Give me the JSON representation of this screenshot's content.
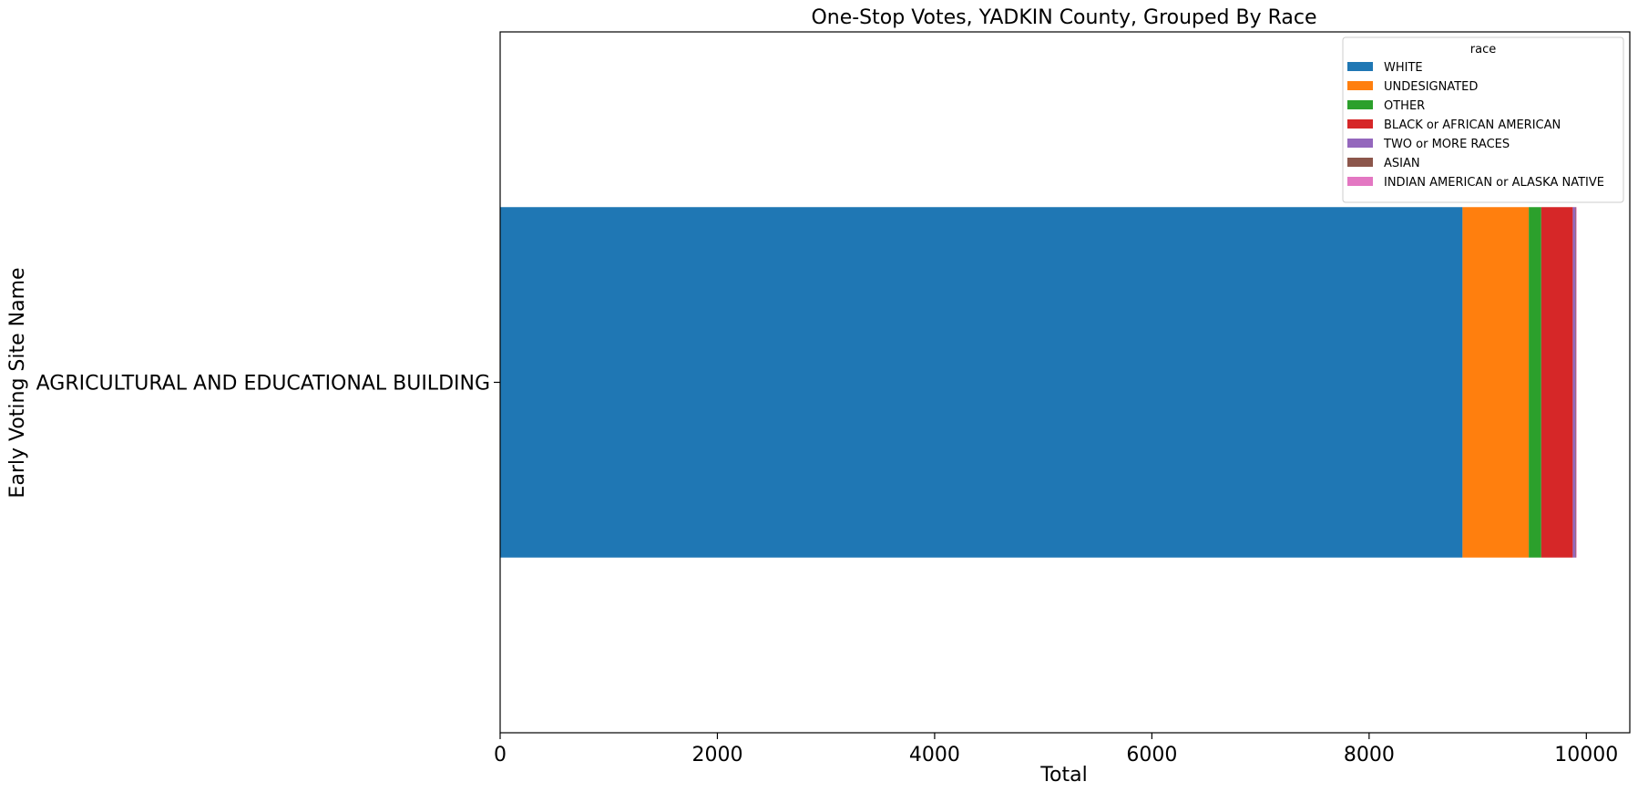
{
  "chart_data": {
    "type": "bar",
    "orientation": "horizontal",
    "stacked": true,
    "title": "One-Stop Votes, YADKIN County, Grouped By Race",
    "xlabel": "Total",
    "ylabel": "Early Voting Site Name",
    "categories": [
      "AGRICULTURAL AND EDUCATIONAL BUILDING"
    ],
    "xlim": [
      0,
      10400
    ],
    "xticks": [
      0,
      2000,
      4000,
      6000,
      8000,
      10000
    ],
    "grid": false,
    "legend": {
      "title": "race",
      "placement": "top-right"
    },
    "series": [
      {
        "name": "WHITE",
        "color": "#1f77b4",
        "values": [
          8860
        ]
      },
      {
        "name": "UNDESIGNATED",
        "color": "#ff7f0e",
        "values": [
          610
        ]
      },
      {
        "name": "OTHER",
        "color": "#2ca02c",
        "values": [
          115
        ]
      },
      {
        "name": "BLACK or AFRICAN AMERICAN",
        "color": "#d62728",
        "values": [
          290
        ]
      },
      {
        "name": "TWO or MORE RACES",
        "color": "#9467bd",
        "values": [
          25
        ]
      },
      {
        "name": "ASIAN",
        "color": "#8c564b",
        "values": [
          5
        ]
      },
      {
        "name": "INDIAN AMERICAN or ALASKA NATIVE",
        "color": "#e377c2",
        "values": [
          5
        ]
      }
    ]
  }
}
